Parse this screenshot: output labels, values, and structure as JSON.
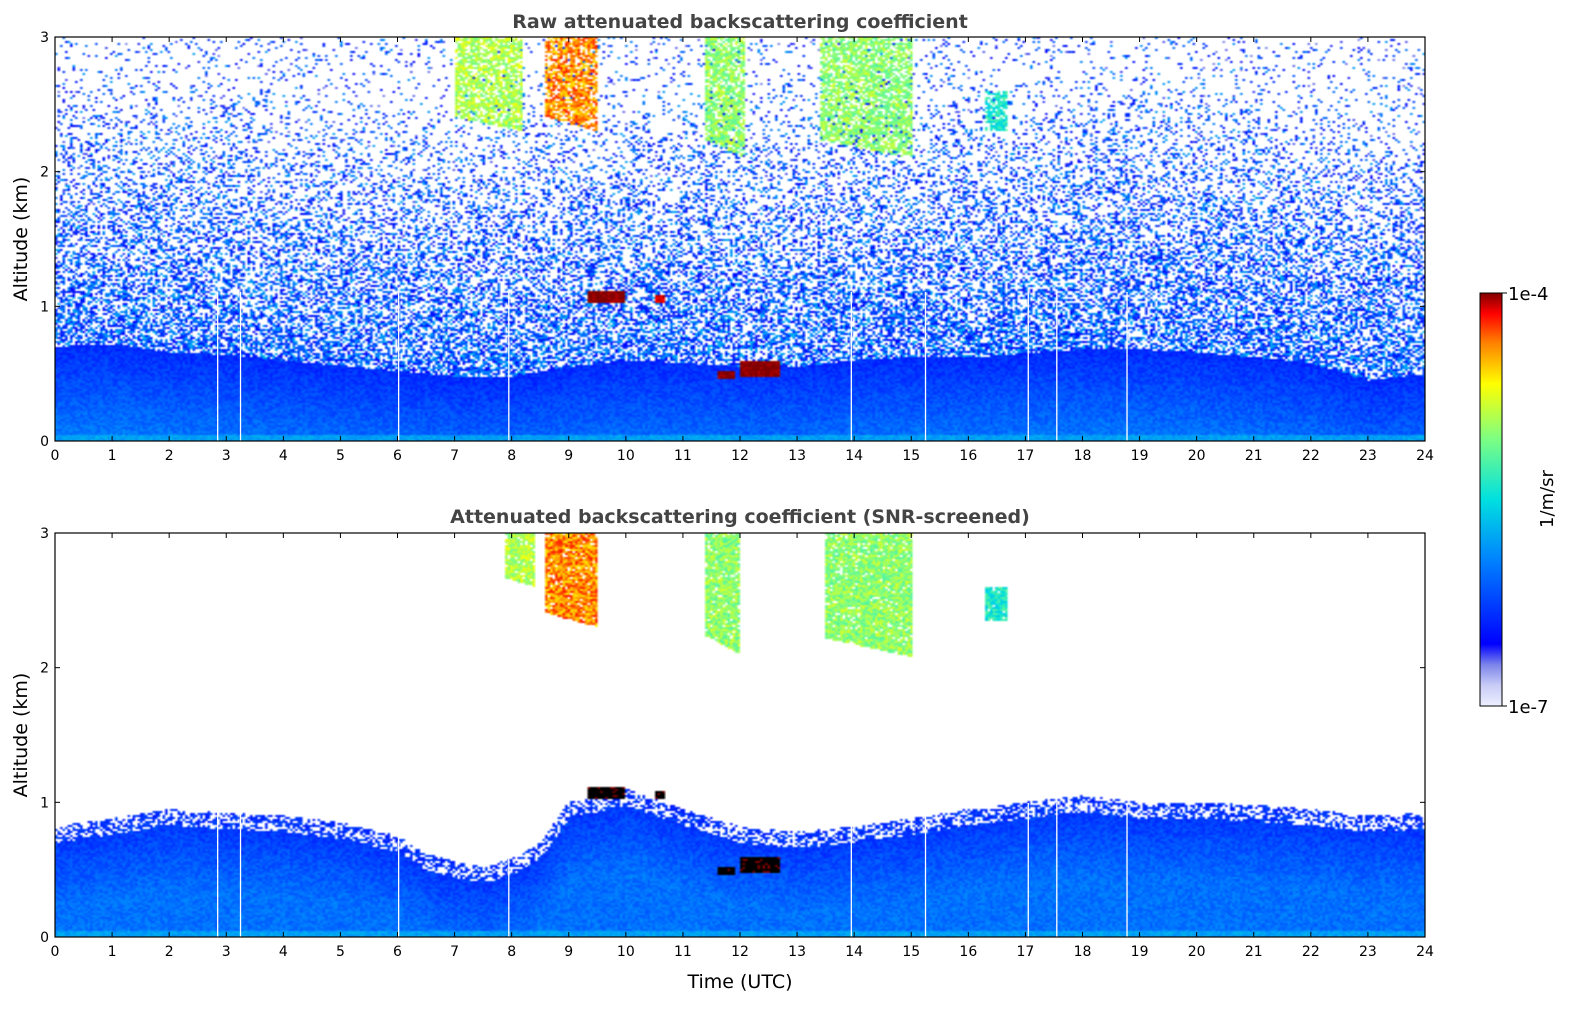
{
  "chart_data": [
    {
      "type": "heatmap",
      "title": "Raw attenuated backscattering coefficient",
      "xlabel": "",
      "ylabel": "Altitude (km)",
      "xlim": [
        0,
        24
      ],
      "ylim": [
        0,
        3
      ],
      "xticks": [
        "0",
        "1",
        "2",
        "3",
        "4",
        "5",
        "6",
        "7",
        "8",
        "9",
        "10",
        "11",
        "12",
        "13",
        "14",
        "15",
        "16",
        "17",
        "18",
        "19",
        "20",
        "21",
        "22",
        "23",
        "24"
      ],
      "yticks": [
        "0",
        "1",
        "2",
        "3"
      ],
      "grid": false,
      "boundary_layer_top_km": [
        [
          0,
          0.7
        ],
        [
          1,
          0.72
        ],
        [
          2,
          0.66
        ],
        [
          3,
          0.64
        ],
        [
          4,
          0.6
        ],
        [
          5,
          0.56
        ],
        [
          6,
          0.52
        ],
        [
          7,
          0.48
        ],
        [
          8,
          0.48
        ],
        [
          9,
          0.55
        ],
        [
          10,
          0.6
        ],
        [
          11,
          0.58
        ],
        [
          12,
          0.55
        ],
        [
          13,
          0.55
        ],
        [
          14,
          0.6
        ],
        [
          15,
          0.62
        ],
        [
          16,
          0.62
        ],
        [
          17,
          0.65
        ],
        [
          18,
          0.68
        ],
        [
          19,
          0.68
        ],
        [
          20,
          0.66
        ],
        [
          21,
          0.62
        ],
        [
          22,
          0.58
        ],
        [
          23,
          0.45
        ],
        [
          24,
          0.5
        ]
      ],
      "cirrus_features": [
        {
          "time_start": 8.6,
          "time_end": 9.5,
          "alt_top_km": 3.0,
          "alt_bottom_km": 2.3,
          "log10_value": -4.4
        },
        {
          "time_start": 7.0,
          "time_end": 8.2,
          "alt_top_km": 3.0,
          "alt_bottom_km": 2.3,
          "log10_value": -4.9
        },
        {
          "time_start": 11.4,
          "time_end": 12.1,
          "alt_top_km": 3.0,
          "alt_bottom_km": 2.1,
          "log10_value": -5.0
        },
        {
          "time_start": 13.4,
          "time_end": 15.0,
          "alt_top_km": 3.0,
          "alt_bottom_km": 2.1,
          "log10_value": -5.0
        },
        {
          "time_start": 16.3,
          "time_end": 16.7,
          "alt_top_km": 2.6,
          "alt_bottom_km": 2.3,
          "log10_value": -5.4
        }
      ],
      "low_cloud_features": [
        {
          "time_start": 9.35,
          "time_end": 10.0,
          "alt_top_km": 1.12,
          "alt_bottom_km": 1.02,
          "log10_value": -4.0
        },
        {
          "time_start": 10.5,
          "time_end": 10.7,
          "alt_top_km": 1.08,
          "alt_bottom_km": 1.02,
          "log10_value": -4.1
        },
        {
          "time_start": 11.6,
          "time_end": 11.9,
          "alt_top_km": 0.52,
          "alt_bottom_km": 0.46,
          "log10_value": -4.0
        },
        {
          "time_start": 12.0,
          "time_end": 12.7,
          "alt_top_km": 0.6,
          "alt_bottom_km": 0.48,
          "log10_value": -4.0
        }
      ],
      "data_gaps_utc": [
        2.85,
        3.25,
        6.02,
        7.95,
        13.95,
        15.25,
        17.05,
        17.55,
        18.78
      ]
    },
    {
      "type": "heatmap",
      "title": "Attenuated backscattering coefficient (SNR-screened)",
      "xlabel": "Time (UTC)",
      "ylabel": "Altitude (km)",
      "xlim": [
        0,
        24
      ],
      "ylim": [
        0,
        3
      ],
      "xticks": [
        "0",
        "1",
        "2",
        "3",
        "4",
        "5",
        "6",
        "7",
        "8",
        "9",
        "10",
        "11",
        "12",
        "13",
        "14",
        "15",
        "16",
        "17",
        "18",
        "19",
        "20",
        "21",
        "22",
        "23",
        "24"
      ],
      "yticks": [
        "0",
        "1",
        "2",
        "3"
      ],
      "grid": false,
      "screened_top_km": [
        [
          0,
          0.82
        ],
        [
          1,
          0.88
        ],
        [
          2,
          0.95
        ],
        [
          3,
          0.92
        ],
        [
          4,
          0.9
        ],
        [
          5,
          0.85
        ],
        [
          6,
          0.75
        ],
        [
          6.5,
          0.62
        ],
        [
          7,
          0.56
        ],
        [
          7.5,
          0.52
        ],
        [
          8,
          0.58
        ],
        [
          8.5,
          0.7
        ],
        [
          9,
          1.0
        ],
        [
          10,
          1.1
        ],
        [
          11,
          0.95
        ],
        [
          12,
          0.82
        ],
        [
          13,
          0.78
        ],
        [
          14,
          0.82
        ],
        [
          15,
          0.88
        ],
        [
          16,
          0.95
        ],
        [
          17,
          1.0
        ],
        [
          18,
          1.05
        ],
        [
          19,
          1.0
        ],
        [
          20,
          1.0
        ],
        [
          21,
          0.98
        ],
        [
          22,
          0.95
        ],
        [
          23,
          0.9
        ],
        [
          24,
          0.92
        ]
      ],
      "cirrus_features": [
        {
          "time_start": 8.6,
          "time_end": 9.5,
          "alt_top_km": 3.0,
          "alt_bottom_km": 2.3,
          "log10_value": -4.4
        },
        {
          "time_start": 7.9,
          "time_end": 8.4,
          "alt_top_km": 3.0,
          "alt_bottom_km": 2.6,
          "log10_value": -4.9
        },
        {
          "time_start": 11.4,
          "time_end": 12.0,
          "alt_top_km": 3.0,
          "alt_bottom_km": 2.1,
          "log10_value": -5.0
        },
        {
          "time_start": 13.5,
          "time_end": 15.0,
          "alt_top_km": 3.0,
          "alt_bottom_km": 2.08,
          "log10_value": -5.0
        },
        {
          "time_start": 16.3,
          "time_end": 16.7,
          "alt_top_km": 2.6,
          "alt_bottom_km": 2.35,
          "log10_value": -5.4
        }
      ],
      "low_cloud_features": [
        {
          "time_start": 9.35,
          "time_end": 10.0,
          "alt_top_km": 1.12,
          "alt_bottom_km": 1.02,
          "log10_value": -3.9
        },
        {
          "time_start": 10.5,
          "time_end": 10.7,
          "alt_top_km": 1.08,
          "alt_bottom_km": 1.02,
          "log10_value": -3.9
        },
        {
          "time_start": 11.6,
          "time_end": 11.9,
          "alt_top_km": 0.52,
          "alt_bottom_km": 0.46,
          "log10_value": -3.9
        },
        {
          "time_start": 12.0,
          "time_end": 12.7,
          "alt_top_km": 0.6,
          "alt_bottom_km": 0.48,
          "log10_value": -3.9
        }
      ],
      "data_gaps_utc": [
        2.85,
        3.25,
        6.02,
        7.95,
        13.95,
        15.25,
        17.05,
        17.55,
        18.78
      ]
    }
  ],
  "colorbar": {
    "label": "1/m/sr",
    "min_label": "1e-7",
    "max_label": "1e-4",
    "scale": "log",
    "range_log10": [
      -7,
      -4
    ],
    "colormap": "jet",
    "low_end_colors": [
      "#eef0ff",
      "#c8ccf6",
      "#a0a6ee",
      "#7c84ea",
      "#5a62ee"
    ]
  }
}
